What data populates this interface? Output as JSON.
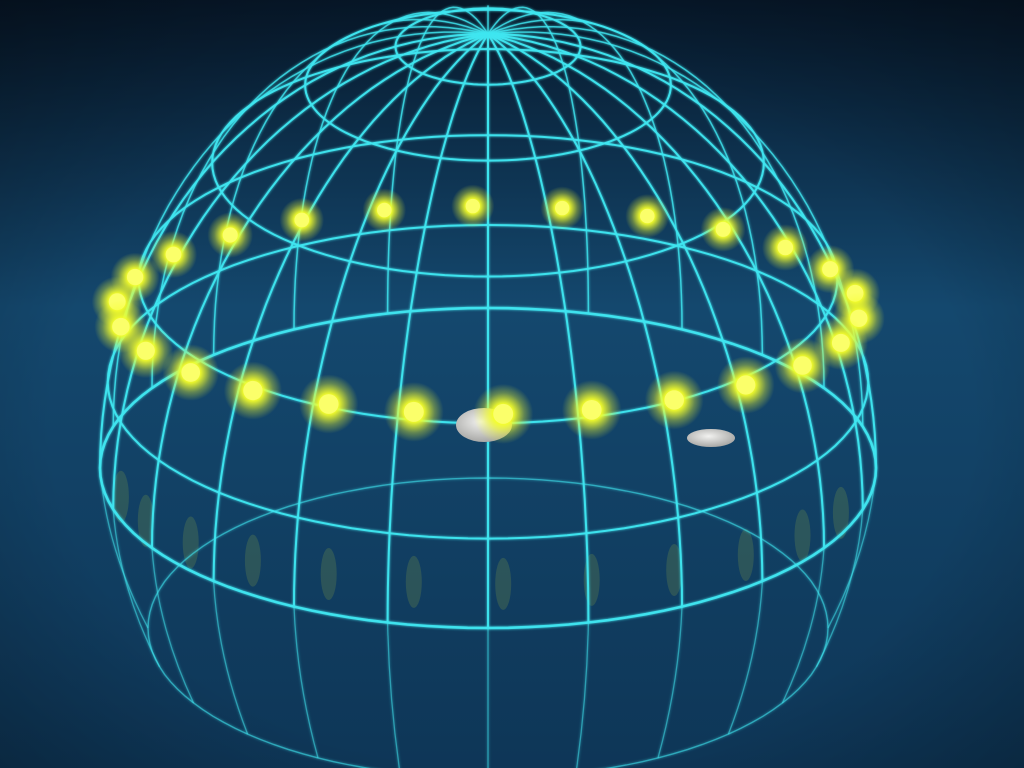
{
  "scene": {
    "colors": {
      "sky_top": "#07192c",
      "sea_mid": "#14486e",
      "sea_bottom": "#0e3657",
      "grid_line": "#3fe6f0",
      "sun_core": "#fbff6a",
      "sun_glow": "#f5ff2a",
      "rock": "#d8d8d6"
    },
    "icons": {
      "celestial_dome": "wireframe-hemisphere-icon",
      "sun_path": "sun-marker-icon",
      "rocks": "rock-icon"
    },
    "dome": {
      "meridian_lines": 24,
      "latitude_circles": 5
    },
    "sun_path": {
      "sun_count": 26
    }
  }
}
